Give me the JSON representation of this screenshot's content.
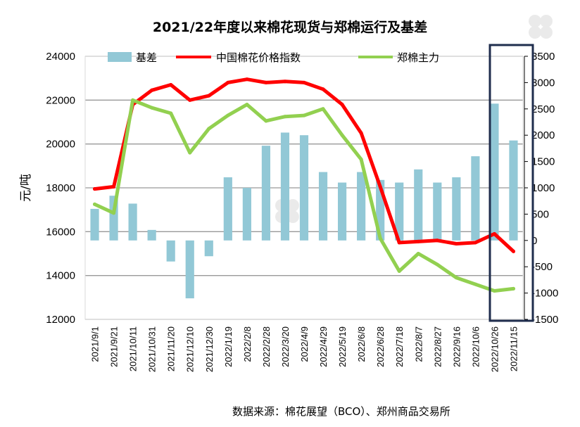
{
  "chart_data": {
    "type": "bar",
    "title": "2021/22年度以来棉花现货与郑棉运行及基差",
    "ylabel": "元/吨",
    "xlabel": "",
    "ylim": [
      12000,
      24000
    ],
    "y2lim": [
      -1500,
      3500
    ],
    "yticks": [
      12000,
      14000,
      16000,
      18000,
      20000,
      22000,
      24000
    ],
    "y2ticks": [
      -1500,
      -1000,
      -500,
      0,
      500,
      1000,
      1500,
      2000,
      2500,
      3000,
      3500
    ],
    "grid": true,
    "legend_position": "top",
    "source": "数据来源：棉花展望（BCO）、郑州商品交易所",
    "categories": [
      "2021/9/1",
      "2021/9/21",
      "2021/10/11",
      "2021/10/31",
      "2021/11/20",
      "2021/12/10",
      "2021/12/30",
      "2022/1/19",
      "2022/2/8",
      "2022/2/28",
      "2022/3/20",
      "2022/4/9",
      "2022/4/29",
      "2022/5/19",
      "2022/6/8",
      "2022/6/28",
      "2022/7/18",
      "2022/8/7",
      "2022/8/27",
      "2022/9/16",
      "2022/10/6",
      "2022/10/26",
      "2022/11/15"
    ],
    "series": [
      {
        "name": "基差",
        "type": "bar",
        "axis": "right",
        "color": "#92c8d6",
        "values": [
          600,
          850,
          700,
          200,
          -400,
          -1100,
          -300,
          1200,
          1000,
          1800,
          2050,
          2000,
          1300,
          1100,
          1300,
          1150,
          1100,
          1350,
          1100,
          1200,
          1600,
          2600,
          1900
        ]
      },
      {
        "name": "中国棉花价格指数",
        "type": "line",
        "axis": "left",
        "color": "#ff0000",
        "values": [
          17950,
          18050,
          21800,
          22450,
          22700,
          22000,
          22200,
          22800,
          22950,
          22800,
          22850,
          22800,
          22500,
          21800,
          20500,
          18050,
          15500,
          15550,
          15600,
          15450,
          15500,
          15900,
          15100
        ]
      },
      {
        "name": "郑棉主力",
        "type": "line",
        "axis": "left",
        "color": "#92d050",
        "values": [
          17250,
          16850,
          22000,
          21650,
          21400,
          19600,
          20700,
          21300,
          21800,
          21050,
          21250,
          21300,
          21600,
          20400,
          19300,
          15700,
          14200,
          15000,
          14500,
          13900,
          13600,
          13300,
          13400
        ]
      }
    ],
    "highlight_range": [
      "2022/10/26",
      "2022/11/15"
    ]
  }
}
